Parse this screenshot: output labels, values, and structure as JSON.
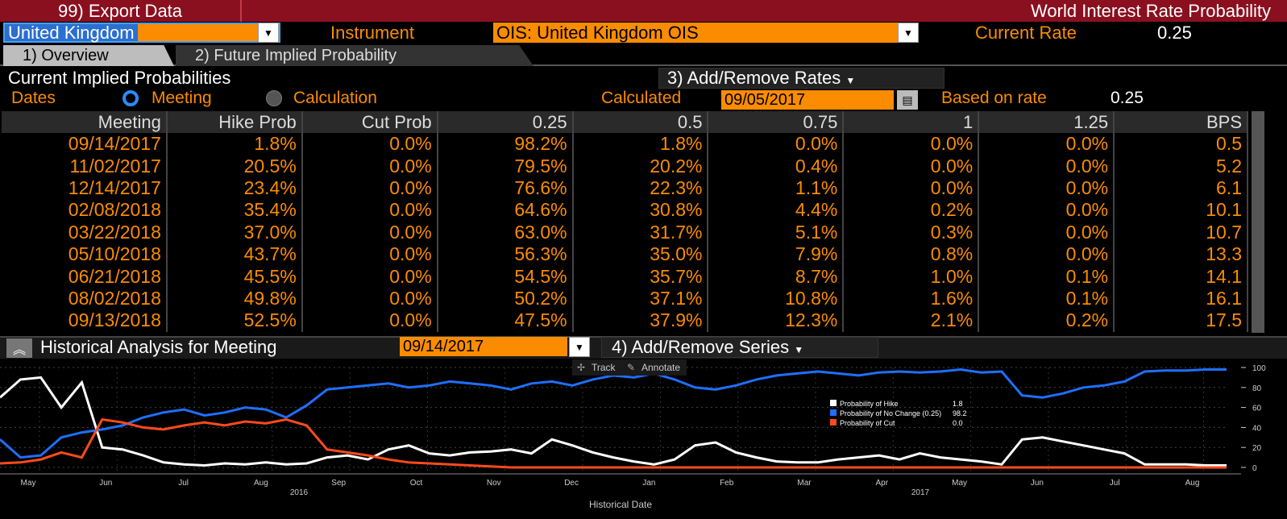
{
  "header": {
    "export_label": "99) Export Data",
    "title": "World Interest Rate Probability"
  },
  "controls": {
    "country": "United Kingdom",
    "instrument_label": "Instrument",
    "instrument": "OIS: United Kingdom OIS",
    "current_rate_label": "Current Rate",
    "current_rate": "0.25"
  },
  "tabs": [
    {
      "label": "1) Overview"
    },
    {
      "label": "2) Future Implied Probability"
    }
  ],
  "section": {
    "title": "Current Implied Probabilities",
    "add_remove": "3) Add/Remove Rates",
    "dates_label": "Dates",
    "opt_meeting": "Meeting",
    "opt_calc": "Calculation",
    "calculated_label": "Calculated",
    "calculated_date": "09/05/2017",
    "based_label": "Based on rate",
    "based_rate": "0.25"
  },
  "table": {
    "headers": [
      "Meeting",
      "Hike Prob",
      "Cut Prob",
      "0.25",
      "0.5",
      "0.75",
      "1",
      "1.25",
      "BPS"
    ],
    "rows": [
      [
        "09/14/2017",
        "1.8%",
        "0.0%",
        "98.2%",
        "1.8%",
        "0.0%",
        "0.0%",
        "0.0%",
        "0.5"
      ],
      [
        "11/02/2017",
        "20.5%",
        "0.0%",
        "79.5%",
        "20.2%",
        "0.4%",
        "0.0%",
        "0.0%",
        "5.2"
      ],
      [
        "12/14/2017",
        "23.4%",
        "0.0%",
        "76.6%",
        "22.3%",
        "1.1%",
        "0.0%",
        "0.0%",
        "6.1"
      ],
      [
        "02/08/2018",
        "35.4%",
        "0.0%",
        "64.6%",
        "30.8%",
        "4.4%",
        "0.2%",
        "0.0%",
        "10.1"
      ],
      [
        "03/22/2018",
        "37.0%",
        "0.0%",
        "63.0%",
        "31.7%",
        "5.1%",
        "0.3%",
        "0.0%",
        "10.7"
      ],
      [
        "05/10/2018",
        "43.7%",
        "0.0%",
        "56.3%",
        "35.0%",
        "7.9%",
        "0.8%",
        "0.0%",
        "13.3"
      ],
      [
        "06/21/2018",
        "45.5%",
        "0.0%",
        "54.5%",
        "35.7%",
        "8.7%",
        "1.0%",
        "0.1%",
        "14.1"
      ],
      [
        "08/02/2018",
        "49.8%",
        "0.0%",
        "50.2%",
        "37.1%",
        "10.8%",
        "1.6%",
        "0.1%",
        "16.1"
      ],
      [
        "09/13/2018",
        "52.5%",
        "0.0%",
        "47.5%",
        "37.9%",
        "12.3%",
        "2.1%",
        "0.2%",
        "17.5"
      ]
    ]
  },
  "historical": {
    "title": "Historical Analysis for Meeting",
    "date": "09/14/2017",
    "add_series": "4) Add/Remove Series",
    "track": "Track",
    "annotate": "Annotate"
  },
  "chart_data": {
    "type": "line",
    "xlabel": "Historical Date",
    "x_ticks": [
      "May",
      "Jun",
      "Jul",
      "Aug",
      "Sep",
      "Oct",
      "Nov",
      "Dec",
      "Jan",
      "Feb",
      "Mar",
      "Apr",
      "May",
      "Jun",
      "Jul",
      "Aug"
    ],
    "year_labels": [
      "2016",
      "2017"
    ],
    "y_ticks": [
      0,
      20,
      40,
      60,
      80,
      100
    ],
    "ylim": [
      0,
      100
    ],
    "legend": [
      {
        "name": "Probability of Hike",
        "value": "1.8",
        "color": "#ffffff"
      },
      {
        "name": "Probability of No Change (0.25)",
        "value": "98.2",
        "color": "#1f6fff"
      },
      {
        "name": "Probability of Cut",
        "value": "0.0",
        "color": "#ff4a1c"
      }
    ],
    "series": [
      {
        "name": "Probability of Hike",
        "color": "#ffffff",
        "values": [
          70,
          88,
          90,
          60,
          85,
          20,
          18,
          12,
          5,
          3,
          2,
          4,
          3,
          5,
          3,
          4,
          10,
          12,
          8,
          18,
          22,
          14,
          12,
          15,
          16,
          18,
          14,
          28,
          22,
          15,
          10,
          6,
          3,
          8,
          22,
          25,
          15,
          10,
          6,
          5,
          5,
          8,
          10,
          12,
          8,
          14,
          10,
          8,
          6,
          3,
          28,
          30,
          26,
          22,
          18,
          14,
          3,
          3,
          3,
          2,
          2
        ]
      },
      {
        "name": "Probability of No Change (0.25)",
        "color": "#1f6fff",
        "values": [
          28,
          10,
          12,
          30,
          35,
          38,
          42,
          50,
          55,
          58,
          52,
          55,
          60,
          58,
          50,
          62,
          78,
          80,
          82,
          84,
          80,
          82,
          86,
          84,
          82,
          78,
          84,
          86,
          82,
          88,
          92,
          90,
          94,
          88,
          80,
          78,
          82,
          88,
          92,
          94,
          96,
          94,
          92,
          95,
          96,
          95,
          96,
          98,
          95,
          96,
          72,
          70,
          74,
          80,
          82,
          86,
          96,
          97,
          97,
          98,
          98
        ]
      },
      {
        "name": "Probability of Cut",
        "color": "#ff4a1c",
        "values": [
          4,
          5,
          8,
          15,
          10,
          48,
          45,
          40,
          38,
          42,
          45,
          42,
          46,
          44,
          48,
          42,
          18,
          15,
          12,
          8,
          5,
          4,
          3,
          2,
          1,
          0,
          0,
          0,
          0,
          0,
          0,
          0,
          0,
          0,
          0,
          0,
          0,
          0,
          0,
          0,
          0,
          0,
          0,
          0,
          0,
          0,
          0,
          0,
          0,
          0,
          0,
          0,
          0,
          0,
          0,
          0,
          0,
          0,
          0,
          0,
          0
        ]
      }
    ]
  }
}
